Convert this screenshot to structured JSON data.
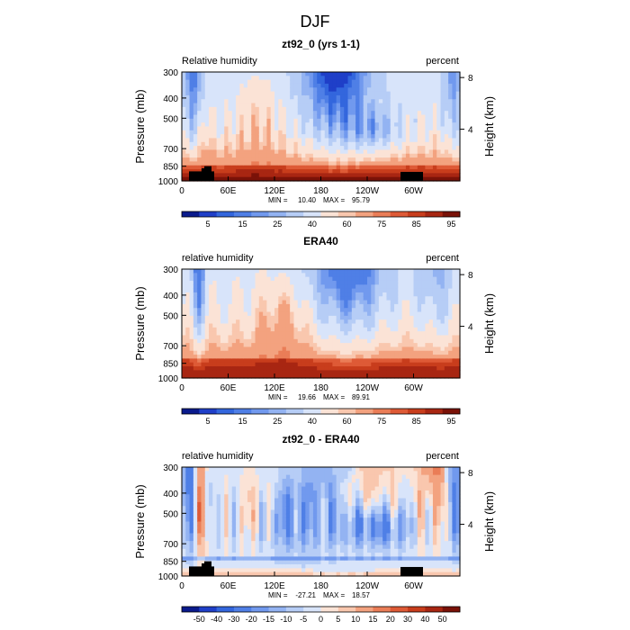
{
  "figure": {
    "title": "DJF"
  },
  "chart_data": [
    {
      "type": "heatmap",
      "title": "zt92_0 (yrs 1-1)",
      "left_label": "Relative humidity",
      "right_label": "percent",
      "xlabel": "",
      "ylabel": "Pressure (mb)",
      "y2label": "Height (km)",
      "x_ticks": [
        "0",
        "60E",
        "120E",
        "180",
        "120W",
        "60W"
      ],
      "x_tick_lon": [
        0,
        60,
        120,
        180,
        240,
        300
      ],
      "xlim": [
        0,
        360
      ],
      "y_ticks": [
        "300",
        "400",
        "500",
        "700",
        "850",
        "1000"
      ],
      "y_tick_values": [
        300,
        400,
        500,
        700,
        850,
        1000
      ],
      "ylim": [
        300,
        1000
      ],
      "y2_ticks": [
        "8",
        "4"
      ],
      "y2_tick_values": [
        8,
        4
      ],
      "stats": {
        "min_label": "MIN =",
        "min": "10.40",
        "max_label": "MAX =",
        "max": "95.79"
      },
      "colorbar_levels": [
        "5",
        "15",
        "25",
        "40",
        "60",
        "75",
        "85",
        "95"
      ],
      "field": "model"
    },
    {
      "type": "heatmap",
      "title": "ERA40",
      "left_label": "relative humidity",
      "right_label": "percent",
      "xlabel": "",
      "ylabel": "Pressure (mb)",
      "y2label": "Height (km)",
      "x_ticks": [
        "0",
        "60E",
        "120E",
        "180",
        "120W",
        "60W"
      ],
      "x_tick_lon": [
        0,
        60,
        120,
        180,
        240,
        300
      ],
      "xlim": [
        0,
        360
      ],
      "y_ticks": [
        "300",
        "400",
        "500",
        "700",
        "850",
        "1000"
      ],
      "y_tick_values": [
        300,
        400,
        500,
        700,
        850,
        1000
      ],
      "ylim": [
        300,
        1000
      ],
      "y2_ticks": [
        "8",
        "4"
      ],
      "y2_tick_values": [
        8,
        4
      ],
      "stats": {
        "min_label": "MIN =",
        "min": "19.66",
        "max_label": "MAX =",
        "max": "89.91"
      },
      "colorbar_levels": [
        "5",
        "15",
        "25",
        "40",
        "60",
        "75",
        "85",
        "95"
      ],
      "field": "obs"
    },
    {
      "type": "heatmap",
      "title": "zt92_0 - ERA40",
      "left_label": "relative humidity",
      "right_label": "percent",
      "xlabel": "",
      "ylabel": "Pressure (mb)",
      "y2label": "Height (km)",
      "x_ticks": [
        "0",
        "60E",
        "120E",
        "180",
        "120W",
        "60W"
      ],
      "x_tick_lon": [
        0,
        60,
        120,
        180,
        240,
        300
      ],
      "xlim": [
        0,
        360
      ],
      "y_ticks": [
        "300",
        "400",
        "500",
        "700",
        "850",
        "1000"
      ],
      "y_tick_values": [
        300,
        400,
        500,
        700,
        850,
        1000
      ],
      "ylim": [
        300,
        1000
      ],
      "y2_ticks": [
        "8",
        "4"
      ],
      "y2_tick_values": [
        8,
        4
      ],
      "stats": {
        "min_label": "MIN =",
        "min": "-27.21",
        "max_label": "MAX =",
        "max": "18.57"
      },
      "colorbar_levels": [
        "-50",
        "-40",
        "-30",
        "-20",
        "-15",
        "-10",
        "-5",
        "0",
        "5",
        "10",
        "15",
        "20",
        "30",
        "40",
        "50"
      ],
      "field": "diff"
    }
  ],
  "palette": {
    "rh": [
      "#0a1a8c",
      "#1f3fc8",
      "#3366dd",
      "#4f7fe6",
      "#7199ee",
      "#93b3f2",
      "#b6cdf6",
      "#d8e4fa",
      "#fbe3d6",
      "#f9c7ae",
      "#f3a27f",
      "#ea7d57",
      "#de5a36",
      "#c83d1c",
      "#a82612",
      "#7a1208"
    ],
    "diff": [
      "#0a1a8c",
      "#1f3fc8",
      "#3366dd",
      "#4f7fe6",
      "#7199ee",
      "#93b3f2",
      "#b6cdf6",
      "#d8e4fa",
      "#fbe3d6",
      "#f9c7ae",
      "#f3a27f",
      "#ea7d57",
      "#de5a36",
      "#c83d1c",
      "#a82612",
      "#7a1208"
    ],
    "topo": "#000000"
  }
}
